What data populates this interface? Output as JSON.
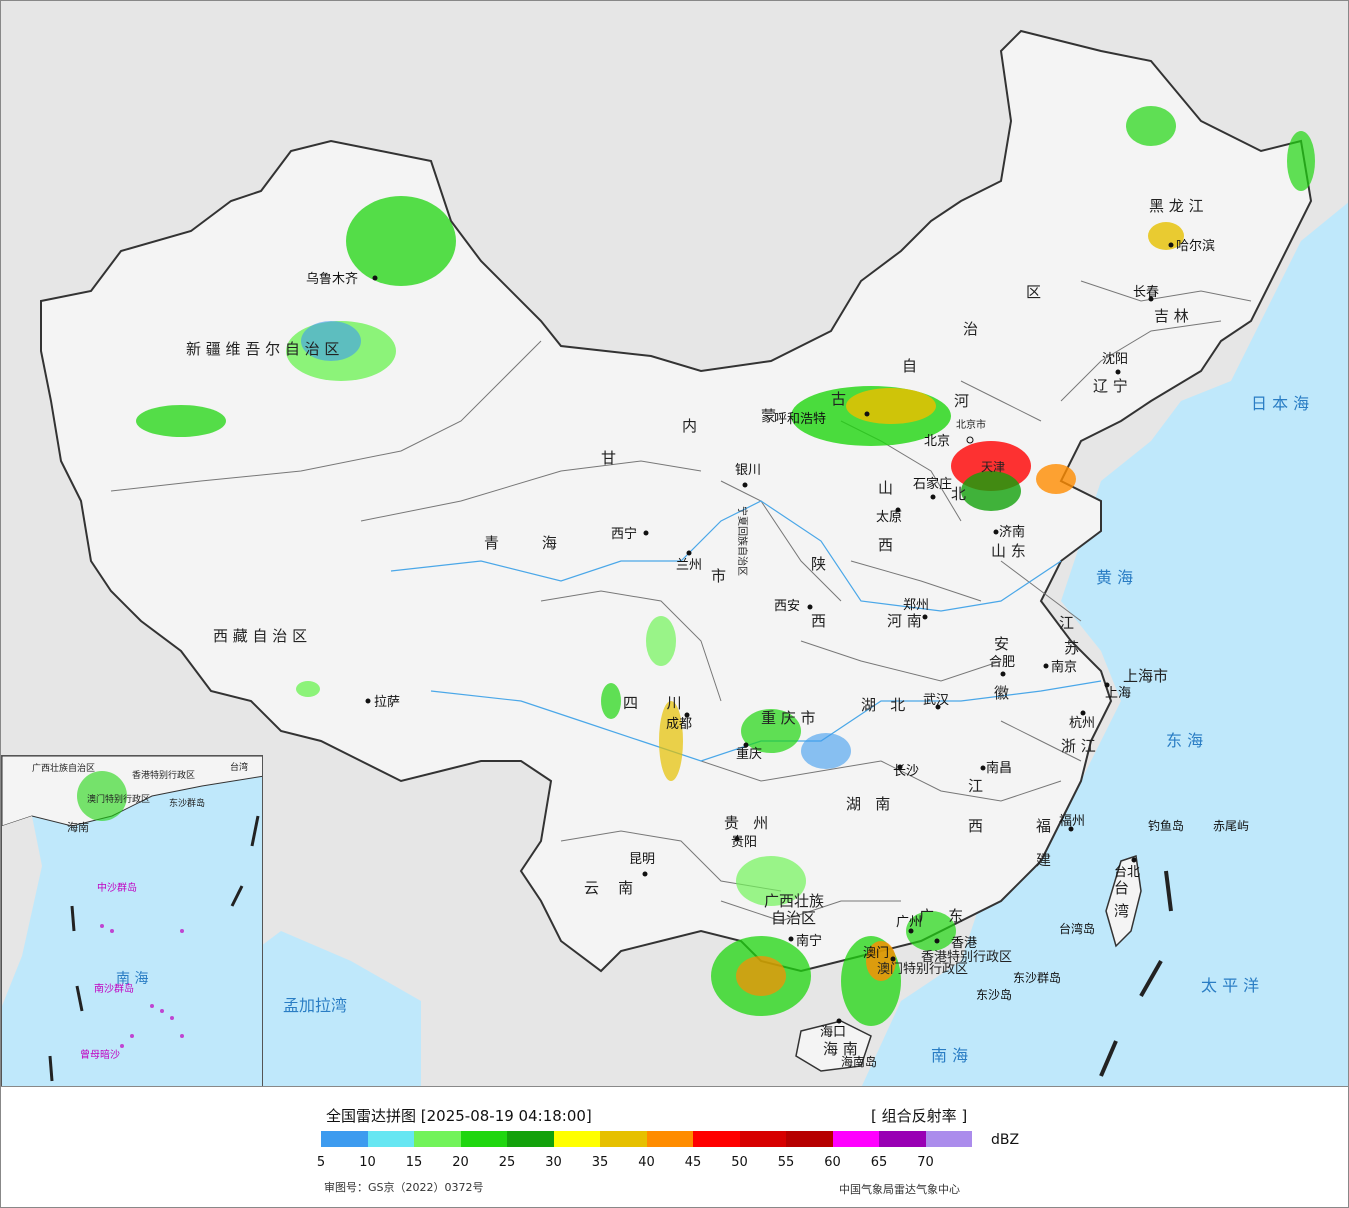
{
  "map": {
    "provinces": [
      {
        "id": "xinjiang",
        "label": "新 疆 维 吾 尔 自 治 区"
      },
      {
        "id": "xizang",
        "label": "西 藏 自 治 区"
      },
      {
        "id": "qinghai",
        "label": "青         海"
      },
      {
        "id": "gansu",
        "label": "甘"
      },
      {
        "id": "neimenggu-1",
        "label": "内"
      },
      {
        "id": "neimenggu-2",
        "label": "蒙"
      },
      {
        "id": "neimenggu-3",
        "label": "古"
      },
      {
        "id": "neimenggu-4",
        "label": "自"
      },
      {
        "id": "neimenggu-5",
        "label": "治"
      },
      {
        "id": "neimenggu-6",
        "label": "区"
      },
      {
        "id": "heilongjiang",
        "label": "黑 龙 江"
      },
      {
        "id": "jilin",
        "label": "吉 林"
      },
      {
        "id": "liaoning",
        "label": "辽 宁"
      },
      {
        "id": "hebei-1",
        "label": "河"
      },
      {
        "id": "hebei-2",
        "label": "北"
      },
      {
        "id": "shanxi-1",
        "label": "山"
      },
      {
        "id": "shanxi-2",
        "label": "西"
      },
      {
        "id": "shandong",
        "label": "山 东"
      },
      {
        "id": "henan",
        "label": "河 南"
      },
      {
        "id": "shaanxi-1",
        "label": "陕"
      },
      {
        "id": "shaanxi-2",
        "label": "西"
      },
      {
        "id": "jiangsu-1",
        "label": "江"
      },
      {
        "id": "jiangsu-2",
        "label": "苏"
      },
      {
        "id": "anhui-1",
        "label": "安"
      },
      {
        "id": "anhui-2",
        "label": "徽"
      },
      {
        "id": "shanghai",
        "label": "上海市"
      },
      {
        "id": "zhejiang",
        "label": "浙 江"
      },
      {
        "id": "hubei",
        "label": "湖   北"
      },
      {
        "id": "sichuan",
        "label": "四      川"
      },
      {
        "id": "chongqing",
        "label": "重 庆 市"
      },
      {
        "id": "hunan",
        "label": "湖   南"
      },
      {
        "id": "jiangxi-1",
        "label": "江"
      },
      {
        "id": "jiangxi-2",
        "label": "西"
      },
      {
        "id": "fujian-1",
        "label": "福"
      },
      {
        "id": "fujian-2",
        "label": "建"
      },
      {
        "id": "guizhou",
        "label": "贵   州"
      },
      {
        "id": "yunnan",
        "label": "云    南"
      },
      {
        "id": "guangxi-1",
        "label": "广西壮族"
      },
      {
        "id": "guangxi-2",
        "label": "自治区"
      },
      {
        "id": "guangdong",
        "label": "广   东"
      },
      {
        "id": "hainan",
        "label": "海 南"
      },
      {
        "id": "taiwan-1",
        "label": "台"
      },
      {
        "id": "taiwan-2",
        "label": "湾"
      },
      {
        "id": "ningxia",
        "label": "宁夏回族自治区"
      },
      {
        "id": "ningxia-city",
        "label": "市"
      },
      {
        "id": "tianjin",
        "label": "天津"
      },
      {
        "id": "hongkong",
        "label": "香港特别行政区"
      },
      {
        "id": "macau",
        "label": "澳门特别行政区"
      },
      {
        "id": "beijing",
        "label": "北京市"
      }
    ],
    "cities": [
      {
        "id": "urumqi",
        "label": "乌鲁木齐"
      },
      {
        "id": "lhasa",
        "label": "拉萨"
      },
      {
        "id": "xining",
        "label": "西宁"
      },
      {
        "id": "lanzhou",
        "label": "兰州"
      },
      {
        "id": "yinchuan",
        "label": "银川"
      },
      {
        "id": "hohhot",
        "label": "呼和浩特"
      },
      {
        "id": "beijing-city",
        "label": "北京"
      },
      {
        "id": "shijiazhuang",
        "label": "石家庄"
      },
      {
        "id": "taiyuan",
        "label": "太原"
      },
      {
        "id": "jinan",
        "label": "济南"
      },
      {
        "id": "zhengzhou",
        "label": "郑州"
      },
      {
        "id": "xian",
        "label": "西安"
      },
      {
        "id": "harbin",
        "label": "哈尔滨"
      },
      {
        "id": "changchun",
        "label": "长春"
      },
      {
        "id": "shenyang",
        "label": "沈阳"
      },
      {
        "id": "nanjing",
        "label": "南京"
      },
      {
        "id": "hefei",
        "label": "合肥"
      },
      {
        "id": "shanghai-city",
        "label": "上海"
      },
      {
        "id": "hangzhou",
        "label": "杭州"
      },
      {
        "id": "wuhan",
        "label": "武汉"
      },
      {
        "id": "chengdu",
        "label": "成都"
      },
      {
        "id": "chongqing-city",
        "label": "重庆"
      },
      {
        "id": "changsha",
        "label": "长沙"
      },
      {
        "id": "nanchang",
        "label": "南昌"
      },
      {
        "id": "fuzhou",
        "label": "福州"
      },
      {
        "id": "guiyang",
        "label": "贵阳"
      },
      {
        "id": "kunming",
        "label": "昆明"
      },
      {
        "id": "nanning",
        "label": "南宁"
      },
      {
        "id": "guangzhou",
        "label": "广州"
      },
      {
        "id": "haikou",
        "label": "海口"
      },
      {
        "id": "taipei",
        "label": "台北"
      },
      {
        "id": "macau-city",
        "label": "澳门"
      },
      {
        "id": "hk-city",
        "label": "香港"
      }
    ],
    "seas": [
      {
        "id": "japan-sea",
        "label": "日 本 海"
      },
      {
        "id": "yellow-sea",
        "label": "黄  海"
      },
      {
        "id": "east-sea",
        "label": "东  海"
      },
      {
        "id": "pacific",
        "label": "太  平  洋"
      },
      {
        "id": "south-sea",
        "label": "南       海"
      },
      {
        "id": "bay-bengal",
        "label": "孟加拉湾"
      }
    ],
    "islands": [
      {
        "id": "diaoyu",
        "label": "钓鱼岛"
      },
      {
        "id": "chiwei",
        "label": "赤尾屿"
      },
      {
        "id": "taiwan-island",
        "label": "台湾岛"
      },
      {
        "id": "dongsha-group",
        "label": "东沙群岛"
      },
      {
        "id": "dongsha",
        "label": "东沙岛"
      },
      {
        "id": "hainan-island",
        "label": "海南岛"
      }
    ]
  },
  "inset": {
    "labels": [
      {
        "id": "inset-south-sea",
        "label": "南  海"
      },
      {
        "id": "inset-xisha",
        "label": "中沙群岛"
      },
      {
        "id": "inset-nansha",
        "label": "南沙群岛"
      },
      {
        "id": "inset-zengmu",
        "label": "曾母暗沙"
      },
      {
        "id": "inset-dongsha",
        "label": "东沙群岛"
      },
      {
        "id": "inset-hk",
        "label": "香港特别行政区"
      },
      {
        "id": "inset-macau",
        "label": "澳门特别行政区"
      },
      {
        "id": "inset-hainan",
        "label": "海南"
      },
      {
        "id": "inset-guangxi",
        "label": "广西壮族自治区"
      },
      {
        "id": "inset-taiwan",
        "label": "台湾"
      }
    ]
  },
  "legend": {
    "title": "全国雷达拼图 [2025-08-19 04:18:00]",
    "product": "[ 组合反射率 ]",
    "unit": "dBZ",
    "review_number": "审图号：GS京（2022）0372号",
    "source": "中国气象局雷达气象中心",
    "colors": [
      "#3d9bef",
      "#66e6f2",
      "#72f35a",
      "#1fd60f",
      "#13a10b",
      "#ffff00",
      "#e6c000",
      "#ff8c00",
      "#ff0000",
      "#d70000",
      "#b60000",
      "#ff00ff",
      "#9900b4",
      "#ab8cec"
    ],
    "ticks": [
      "5",
      "10",
      "15",
      "20",
      "25",
      "30",
      "35",
      "40",
      "45",
      "50",
      "55",
      "60",
      "65",
      "70"
    ]
  }
}
